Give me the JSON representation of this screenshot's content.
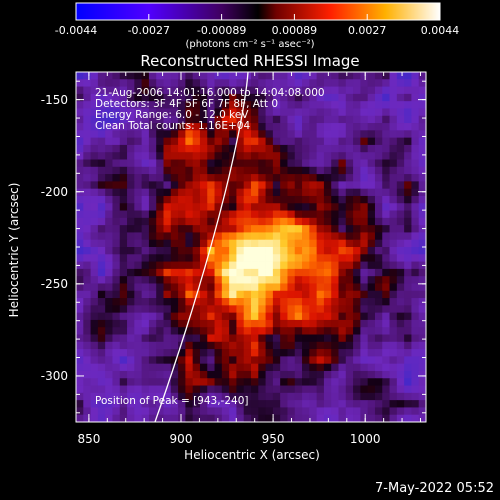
{
  "colorbar": {
    "ticks": [
      "-0.0044",
      "-0.0027",
      "-0.00089",
      "0.00089",
      "0.0027",
      "0.0044"
    ],
    "unit": "(photons cm⁻² s⁻¹ asec⁻²)"
  },
  "chart_data": {
    "type": "heatmap",
    "title": "Reconstructed RHESSI Image",
    "xlabel": "Heliocentric X (arcsec)",
    "ylabel": "Heliocentric Y (arcsec)",
    "xlim": [
      843,
      1033
    ],
    "ylim": [
      -325,
      -135
    ],
    "xticks": [
      "850",
      "900",
      "950",
      "1000"
    ],
    "yticks": [
      "-150",
      "-200",
      "-250",
      "-300"
    ],
    "colorscale": {
      "min": -0.0044,
      "max": 0.0044,
      "colors": [
        "#0000ff",
        "#8000ff",
        "#000000",
        "#ff0000",
        "#ffa000",
        "#ffffff"
      ]
    },
    "peak": {
      "x": 943,
      "y": -240
    },
    "annotations": {
      "time_range": "21-Aug-2006 14:01:16.000 to 14:04:08.000",
      "detectors": "Detectors: 3F 4F 5F 6F 7F 8F, Att 0",
      "energy": "Energy Range: 6.0 - 12.0 keV",
      "clean": "Clean     Total counts: 1.16E+04",
      "peak_label": "Position of Peak = [943,-240]"
    }
  },
  "timestamp": "7-May-2022 05:52"
}
